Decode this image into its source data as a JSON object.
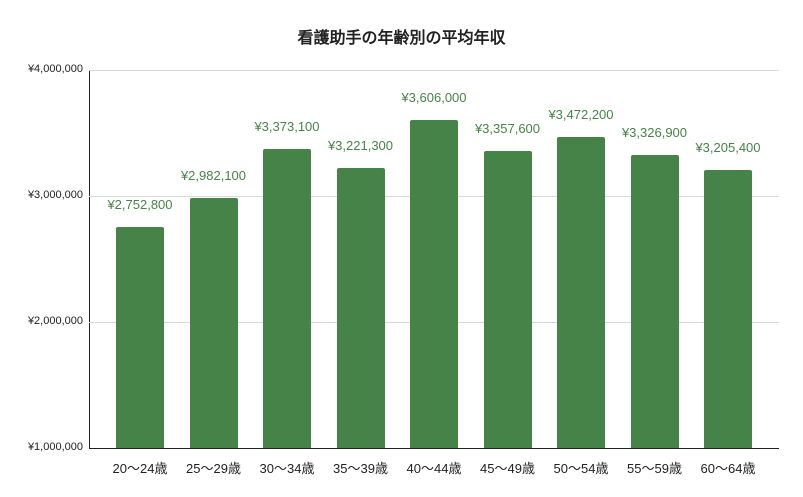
{
  "chart_data": {
    "type": "bar",
    "title": "看護助手の年齢別の平均年収",
    "xlabel": "",
    "ylabel": "",
    "categories": [
      "20〜24歳",
      "25〜29歳",
      "30〜34歳",
      "35〜39歳",
      "40〜44歳",
      "45〜49歳",
      "50〜54歳",
      "55〜59歳",
      "60〜64歳"
    ],
    "values": [
      2752800,
      2982100,
      3373100,
      3221300,
      3606000,
      3357600,
      3472200,
      3326900,
      3205400
    ],
    "value_labels": [
      "¥2,752,800",
      "¥2,982,100",
      "¥3,373,100",
      "¥3,221,300",
      "¥3,606,000",
      "¥3,357,600",
      "¥3,472,200",
      "¥3,326,900",
      "¥3,205,400"
    ],
    "ylim": [
      1000000,
      4000000
    ],
    "yticks": [
      1000000,
      2000000,
      3000000,
      4000000
    ],
    "ytick_labels": [
      "¥1,000,000",
      "¥2,000,000",
      "¥3,000,000",
      "¥4,000,000"
    ],
    "grid": true,
    "legend": "none",
    "bar_color": "#468348"
  }
}
